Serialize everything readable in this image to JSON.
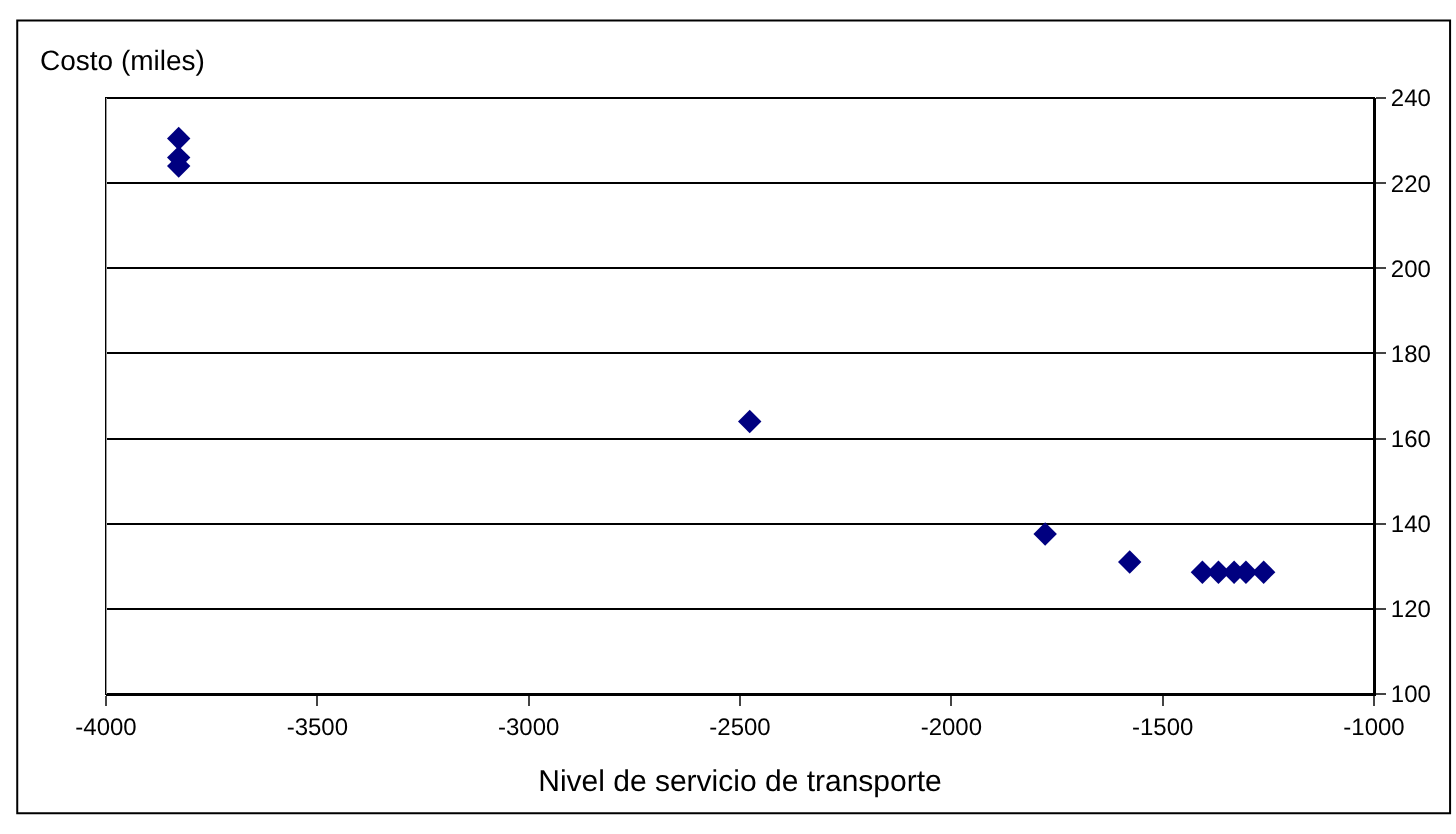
{
  "chart_data": {
    "type": "scatter",
    "ylabel": "Costo (miles)",
    "xlabel": "Nivel de servicio de transporte",
    "x": [
      -3828,
      -3828,
      -3828,
      -2477,
      -1778,
      -1578,
      -1406,
      -1368,
      -1331,
      -1303,
      -1261
    ],
    "series": [
      {
        "color": "#000080",
        "values": [
          230.5,
          226,
          224,
          164,
          137.6,
          131,
          128.6,
          128.6,
          128.6,
          128.6,
          128.6
        ]
      }
    ],
    "xlim": [
      -4000,
      -1000
    ],
    "xticks": [
      -4000,
      -3500,
      -3000,
      -2500,
      -2000,
      -1500,
      -1000
    ],
    "ylim": [
      100,
      240
    ],
    "yticks": [
      100,
      120,
      140,
      160,
      180,
      200,
      220,
      240
    ],
    "grid": "y",
    "marker": "diamond",
    "legend": false
  }
}
